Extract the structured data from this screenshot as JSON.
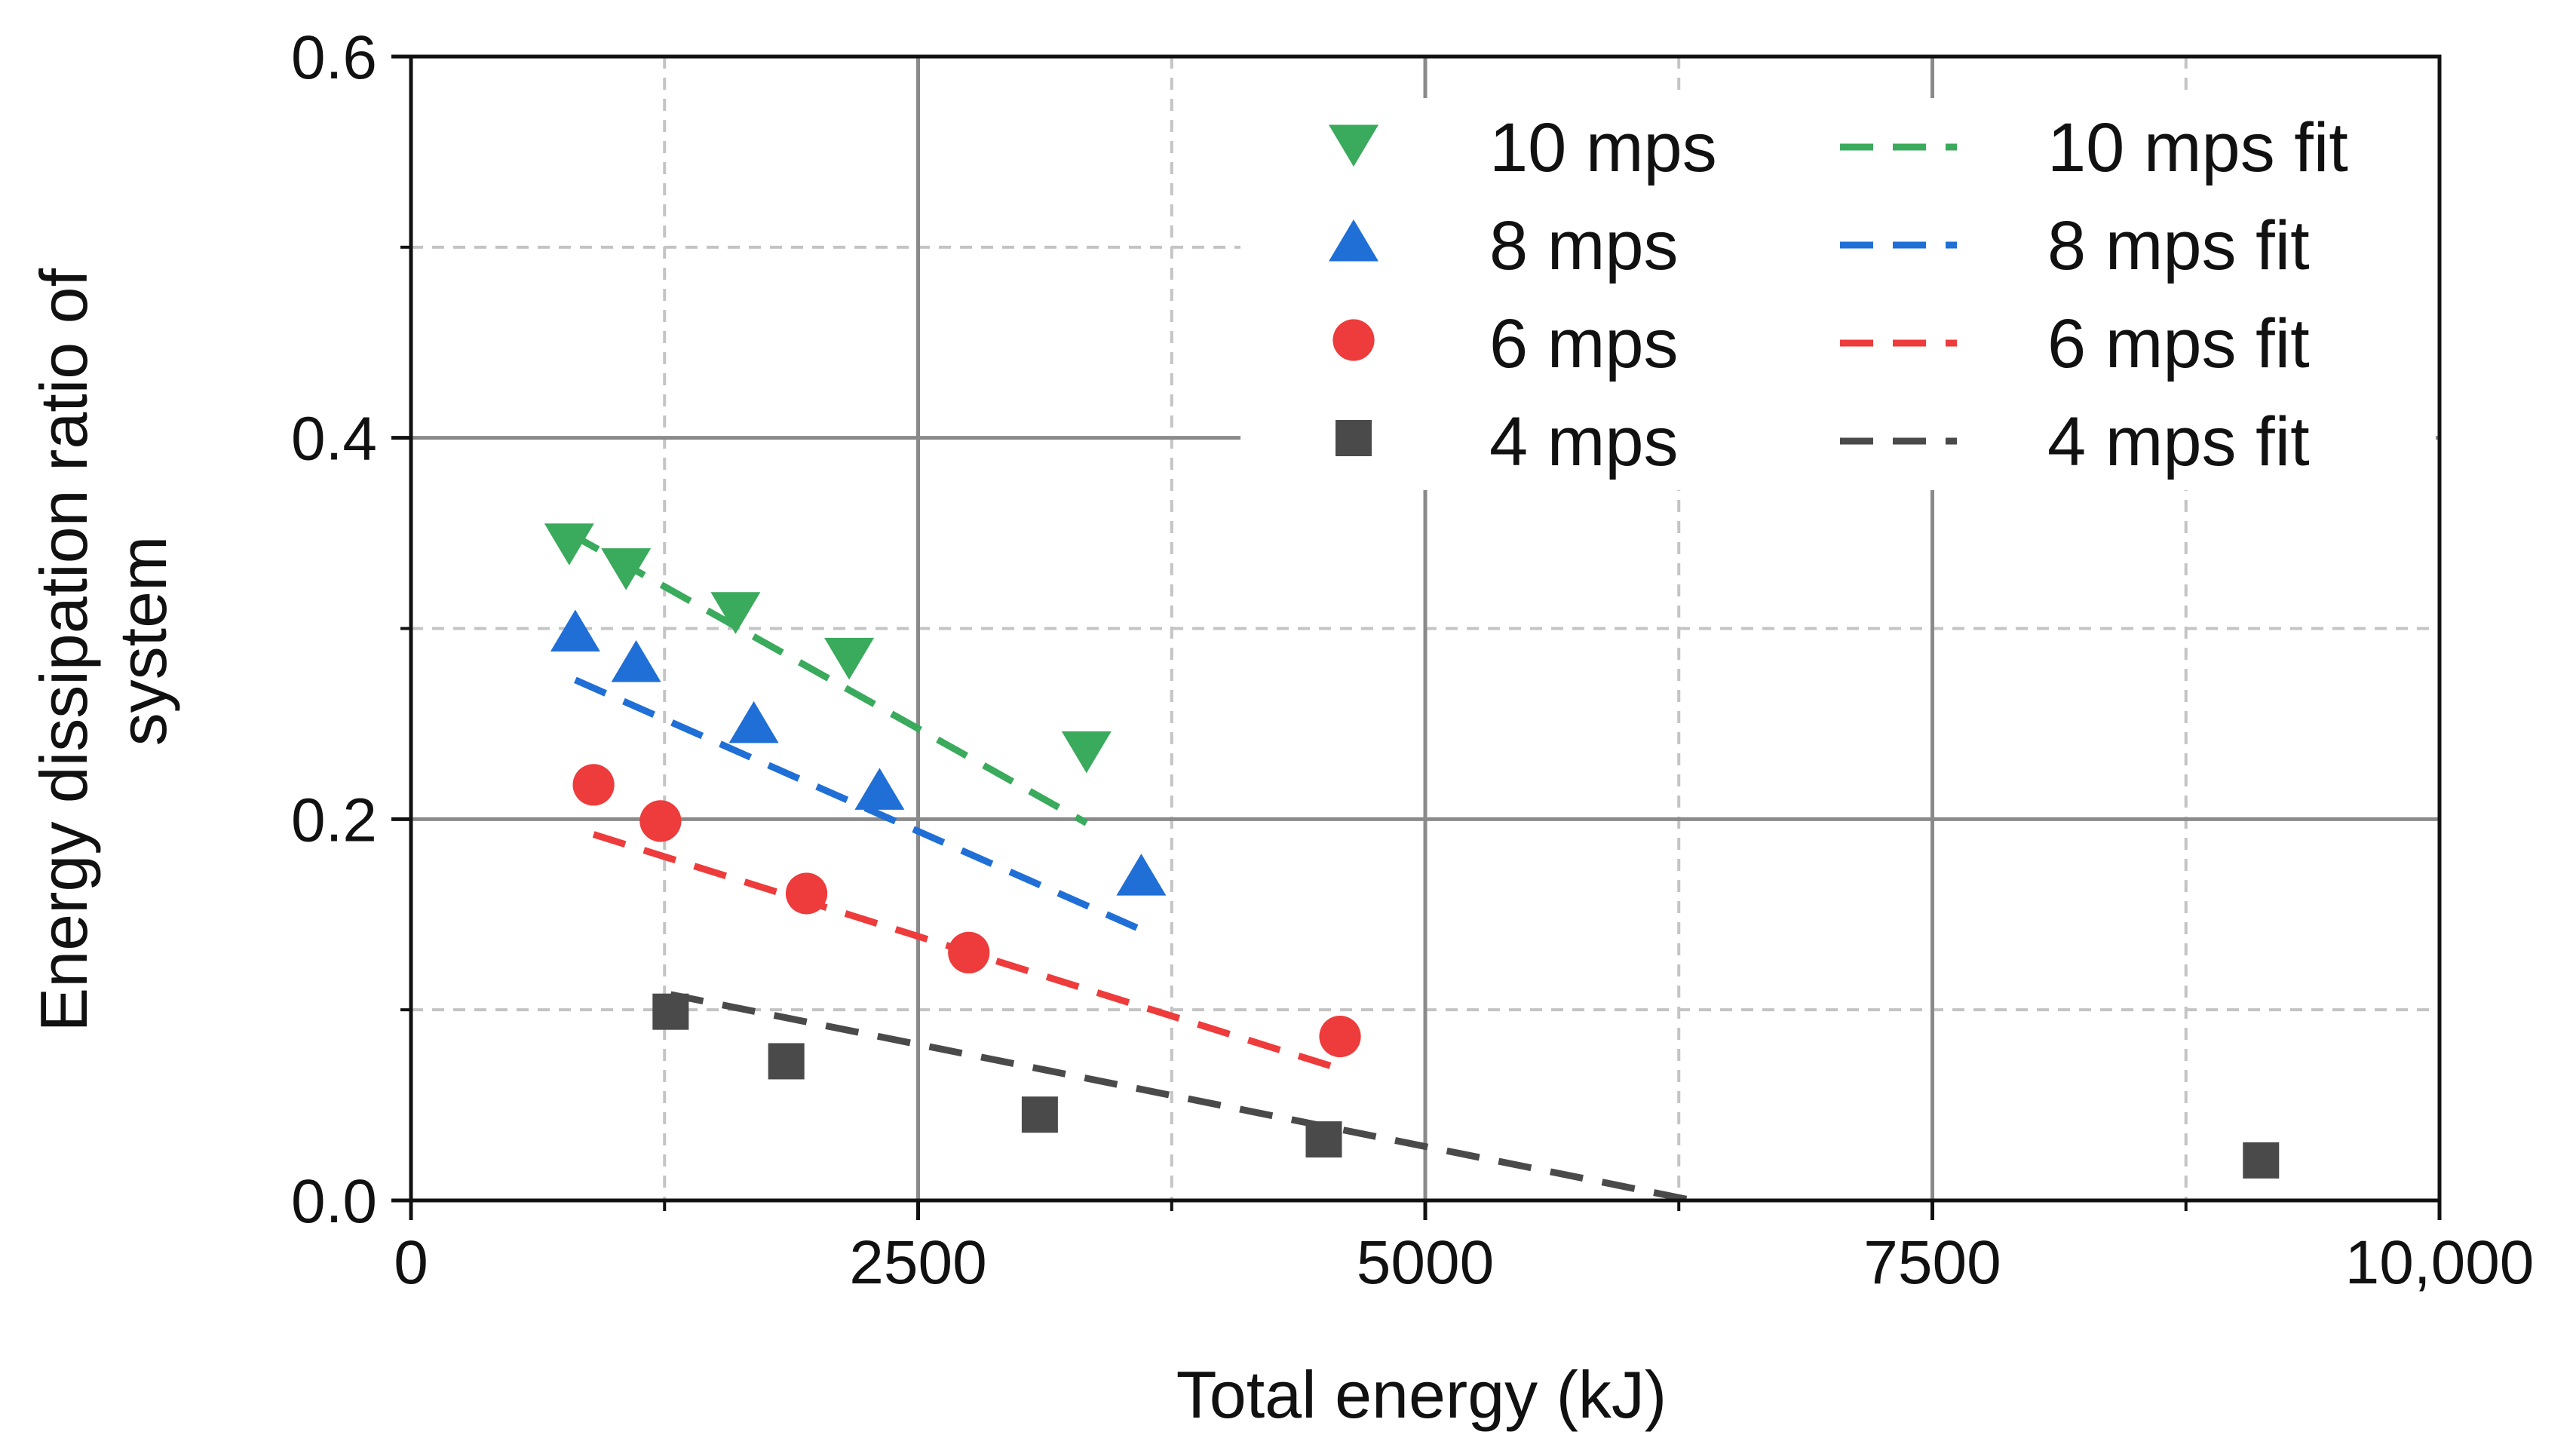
{
  "chart_data": {
    "type": "scatter",
    "xlabel": "Total energy (kJ)",
    "ylabel_lines": [
      "Energy dissipation ratio of",
      "system"
    ],
    "xlim": [
      0,
      10000
    ],
    "ylim": [
      0,
      0.6
    ],
    "x_ticks": [
      0,
      2500,
      5000,
      7500,
      10000
    ],
    "x_tick_labels": [
      "0",
      "2500",
      "5000",
      "7500",
      "10,000"
    ],
    "y_ticks": [
      0,
      0.2,
      0.4,
      0.6
    ],
    "y_tick_labels": [
      "0.0",
      "0.2",
      "0.4",
      "0.6"
    ],
    "x_minor_ticks": [
      1250,
      3750,
      6250,
      8750
    ],
    "y_minor_ticks": [
      0.1,
      0.3,
      0.5
    ],
    "grid": true,
    "legend_position": "top-right",
    "series": [
      {
        "name": "10 mps",
        "marker": "triangle-down",
        "color": "#3aaa5c",
        "x": [
          780,
          1060,
          1600,
          2160,
          3330
        ],
        "y": [
          0.345,
          0.332,
          0.309,
          0.285,
          0.236
        ]
      },
      {
        "name": "8 mps",
        "marker": "triangle-up",
        "color": "#1f6fd6",
        "x": [
          810,
          1110,
          1690,
          2310,
          3600
        ],
        "y": [
          0.298,
          0.282,
          0.25,
          0.215,
          0.17
        ]
      },
      {
        "name": "6 mps",
        "marker": "circle",
        "color": "#ee3b3b",
        "x": [
          900,
          1230,
          1950,
          2750,
          4580
        ],
        "y": [
          0.218,
          0.199,
          0.161,
          0.13,
          0.086
        ]
      },
      {
        "name": "4 mps",
        "marker": "square",
        "color": "#4a4a4a",
        "x": [
          1280,
          1850,
          3100,
          4500,
          9120
        ],
        "y": [
          0.099,
          0.073,
          0.045,
          0.032,
          0.021
        ]
      }
    ],
    "fits": [
      {
        "name": "10 mps fit",
        "color": "#3aaa5c",
        "x": [
          780,
          3330
        ],
        "y": [
          0.35,
          0.198
        ]
      },
      {
        "name": "8 mps fit",
        "color": "#1f6fd6",
        "x": [
          810,
          3600
        ],
        "y": [
          0.273,
          0.142
        ]
      },
      {
        "name": "6 mps fit",
        "color": "#ee3b3b",
        "x": [
          900,
          4580
        ],
        "y": [
          0.192,
          0.069
        ]
      },
      {
        "name": "4 mps fit",
        "color": "#4a4a4a",
        "x": [
          1280,
          6320
        ],
        "y": [
          0.108,
          0.0
        ]
      }
    ]
  }
}
